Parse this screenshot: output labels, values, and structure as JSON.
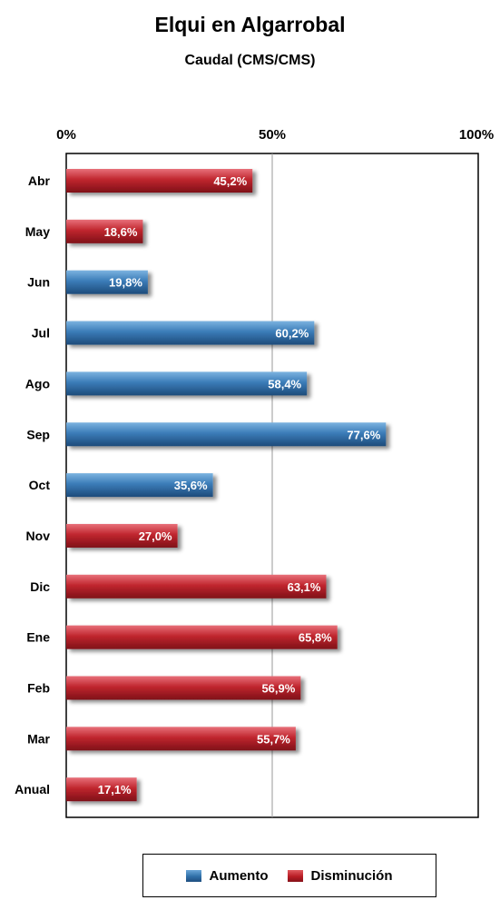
{
  "chart_data": {
    "type": "bar",
    "orientation": "horizontal",
    "title": "Elqui en Algarrobal",
    "subtitle": "Caudal (CMS/CMS)",
    "xlim": [
      0,
      100
    ],
    "x_ticks": [
      "0%",
      "50%",
      "100%"
    ],
    "x_tick_values": [
      0,
      50,
      100
    ],
    "gridlines": [
      50
    ],
    "categories": [
      "Abr",
      "May",
      "Jun",
      "Jul",
      "Ago",
      "Sep",
      "Oct",
      "Nov",
      "Dic",
      "Ene",
      "Feb",
      "Mar",
      "Anual"
    ],
    "values": [
      45.2,
      18.6,
      19.8,
      60.2,
      58.4,
      77.6,
      35.6,
      27.0,
      63.1,
      65.8,
      56.9,
      55.7,
      17.1
    ],
    "value_labels": [
      "45,2%",
      "18,6%",
      "19,8%",
      "60,2%",
      "58,4%",
      "77,6%",
      "35,6%",
      "27,0%",
      "63,1%",
      "65,8%",
      "56,9%",
      "55,7%",
      "17,1%"
    ],
    "kinds": [
      "dec",
      "dec",
      "inc",
      "inc",
      "inc",
      "inc",
      "inc",
      "dec",
      "dec",
      "dec",
      "dec",
      "dec",
      "dec"
    ],
    "legend": {
      "placement": "bottom",
      "items": [
        {
          "key": "inc",
          "label": "Aumento",
          "color": "#2f6fa8"
        },
        {
          "key": "dec",
          "label": "Disminución",
          "color": "#b91c24"
        }
      ]
    },
    "colors": {
      "inc": "#2f6fa8",
      "dec": "#b91c24"
    }
  }
}
